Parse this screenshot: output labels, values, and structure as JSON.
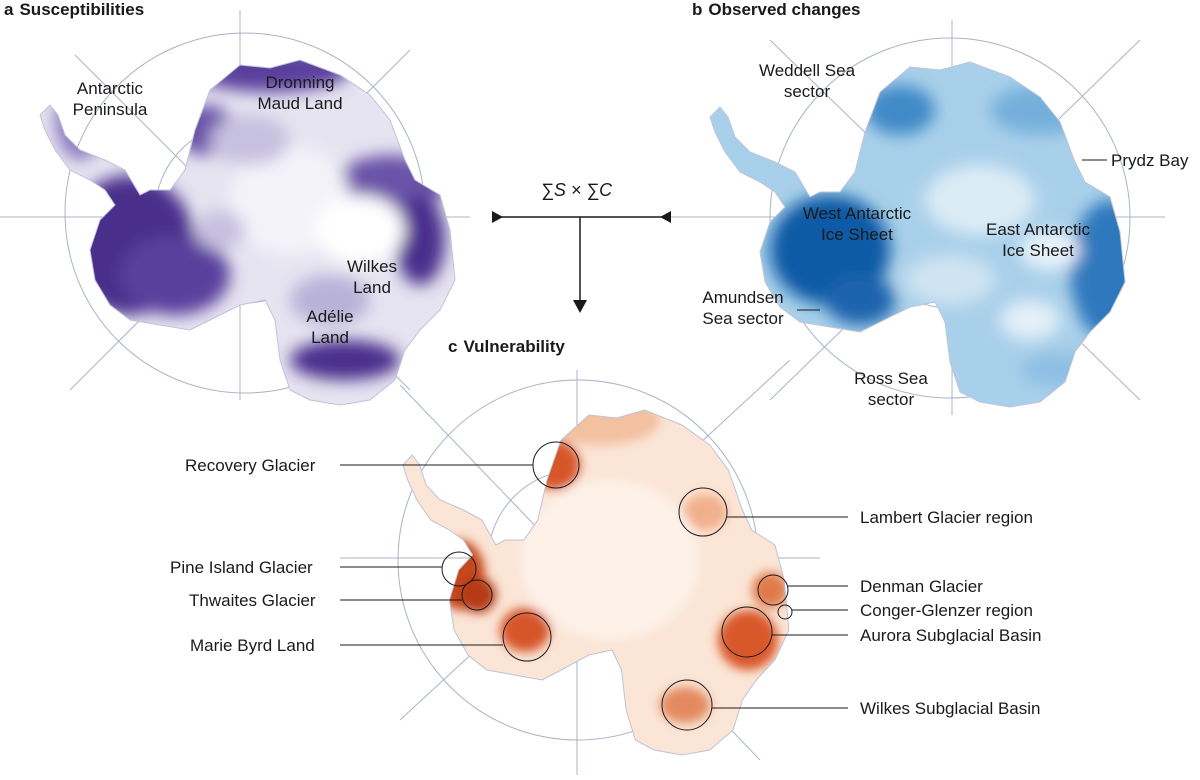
{
  "panels": {
    "a": {
      "letter": "a",
      "title": "Susceptibilities",
      "labels": [
        "Antarctic",
        "Peninsula",
        "Dronning",
        "Maud Land",
        "Wilkes",
        "Land",
        "Adélie",
        "Land"
      ]
    },
    "b": {
      "letter": "b",
      "title": "Observed changes",
      "labels": [
        "Weddell Sea",
        "sector",
        "Prydz Bay",
        "West Antarctic",
        "Ice Sheet",
        "East Antarctic",
        "Ice Sheet",
        "Amundsen",
        "Sea sector",
        "Ross Sea",
        "sector"
      ]
    },
    "c": {
      "letter": "c",
      "title": "Vulnerability",
      "callouts": [
        "Recovery Glacier",
        "Lambert Glacier region",
        "Pine Island Glacier",
        "Thwaites Glacier",
        "Marie Byrd Land",
        "Denman Glacier",
        "Conger-Glenzer region",
        "Aurora Subglacial Basin",
        "Wilkes Subglacial Basin"
      ]
    }
  },
  "formula": "∑S × ∑C",
  "colors": {
    "susceptibility": "#4b2e91",
    "observed": "#1466b0",
    "vulnerability": "#c9461c",
    "graticule": "#9aa6bf"
  }
}
